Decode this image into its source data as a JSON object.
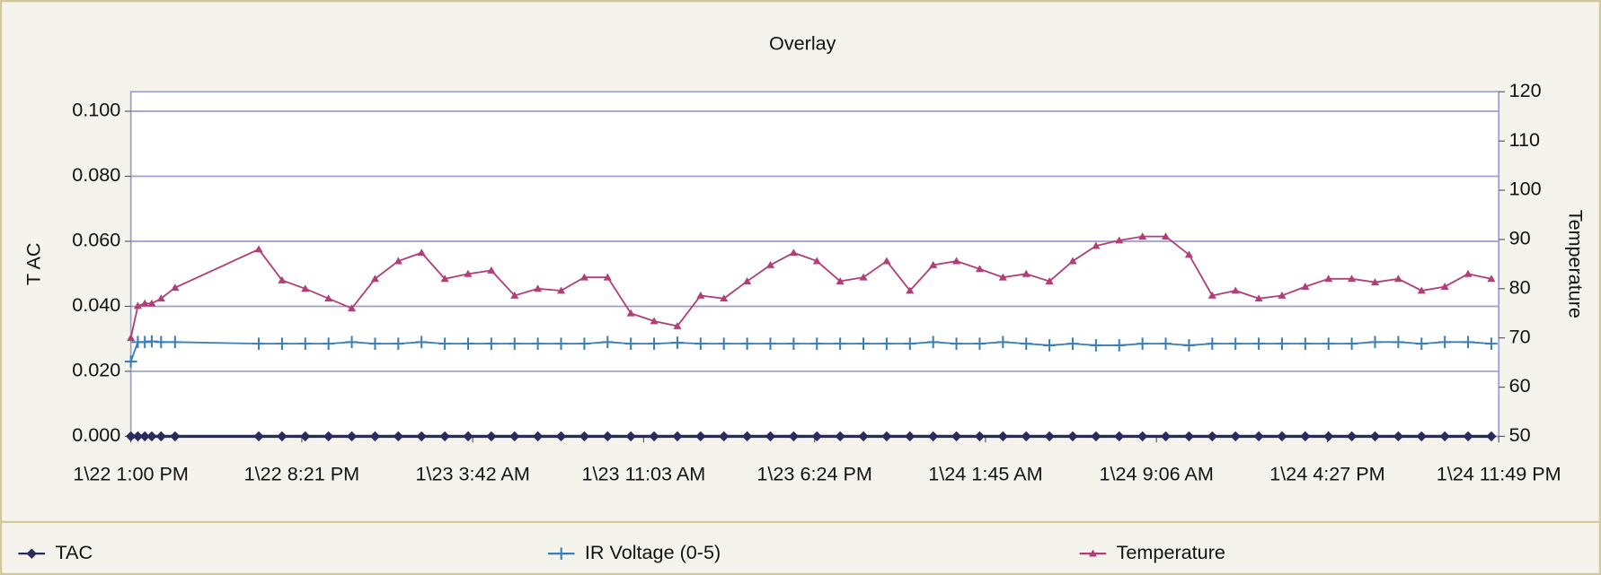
{
  "chart_data": {
    "type": "line",
    "title": "Overlay",
    "ylabel": "T AC",
    "y2label": "Temperature",
    "x": [
      0,
      0.3,
      0.6,
      0.9,
      1.3,
      1.9,
      5.5,
      6.5,
      7.5,
      8.5,
      9.5,
      10.5,
      11.5,
      12.5,
      13.5,
      14.5,
      15.5,
      16.5,
      17.5,
      18.5,
      19.5,
      20.5,
      21.5,
      22.5,
      23.5,
      24.5,
      25.5,
      26.5,
      27.5,
      28.5,
      29.5,
      30.5,
      31.5,
      32.5,
      33.5,
      34.5,
      35.5,
      36.5,
      37.5,
      38.5,
      39.5,
      40.5,
      41.5,
      42.5,
      43.5,
      44.5,
      45.5,
      46.5,
      47.5,
      48.5,
      49.5,
      50.5,
      51.5,
      52.5,
      53.5,
      54.5,
      55.5,
      56.5,
      57.5,
      58.5
    ],
    "xlim": [
      0,
      58.82
    ],
    "xticks": [
      {
        "value": 0,
        "label": "1\\22 1:00 PM"
      },
      {
        "value": 7.35,
        "label": "1\\22 8:21 PM"
      },
      {
        "value": 14.7,
        "label": "1\\23 3:42 AM"
      },
      {
        "value": 22.05,
        "label": "1\\23 11:03 AM"
      },
      {
        "value": 29.4,
        "label": "1\\23 6:24 PM"
      },
      {
        "value": 36.75,
        "label": "1\\24 1:45 AM"
      },
      {
        "value": 44.1,
        "label": "1\\24 9:06 AM"
      },
      {
        "value": 51.45,
        "label": "1\\24 4:27 PM"
      },
      {
        "value": 58.82,
        "label": "1\\24 11:49 PM"
      }
    ],
    "ylim": [
      0,
      0.106
    ],
    "yticks": [
      {
        "value": 0,
        "label": "0.000"
      },
      {
        "value": 0.02,
        "label": "0.020"
      },
      {
        "value": 0.04,
        "label": "0.040"
      },
      {
        "value": 0.06,
        "label": "0.060"
      },
      {
        "value": 0.08,
        "label": "0.080"
      },
      {
        "value": 0.1,
        "label": "0.100"
      }
    ],
    "y2lim": [
      50,
      120
    ],
    "y2ticks": [
      50,
      60,
      70,
      80,
      90,
      100,
      110,
      120
    ],
    "grid": true,
    "legend": "bottom",
    "series": [
      {
        "name": "TAC",
        "color": "#2a2a5c",
        "marker": "diamond",
        "values": [
          0,
          0,
          0,
          0,
          0,
          0,
          0,
          0,
          0,
          0,
          0,
          0,
          0,
          0,
          0,
          0,
          0,
          0,
          0,
          0,
          0,
          0,
          0,
          0,
          0,
          0,
          0,
          0,
          0,
          0,
          0,
          0,
          0,
          0,
          0,
          0,
          0,
          0,
          0,
          0,
          0,
          0,
          0,
          0,
          0,
          0,
          0,
          0,
          0,
          0,
          0,
          0,
          0,
          0,
          0,
          0,
          0,
          0,
          0,
          0
        ]
      },
      {
        "name": "IR Voltage (0-5)",
        "color": "#3a7fb8",
        "marker": "plus",
        "values": [
          0.023,
          0.029,
          0.029,
          0.0292,
          0.029,
          0.029,
          0.0285,
          0.0285,
          0.0285,
          0.0285,
          0.029,
          0.0285,
          0.0285,
          0.029,
          0.0285,
          0.0285,
          0.0285,
          0.0285,
          0.0285,
          0.0285,
          0.0285,
          0.029,
          0.0285,
          0.0285,
          0.0288,
          0.0285,
          0.0285,
          0.0285,
          0.0285,
          0.0285,
          0.0285,
          0.0285,
          0.0285,
          0.0285,
          0.0285,
          0.029,
          0.0285,
          0.0285,
          0.029,
          0.0285,
          0.028,
          0.0285,
          0.028,
          0.028,
          0.0285,
          0.0285,
          0.028,
          0.0285,
          0.0285,
          0.0285,
          0.0285,
          0.0285,
          0.0285,
          0.0285,
          0.029,
          0.029,
          0.0285,
          0.029,
          0.029,
          0.0285
        ]
      },
      {
        "name": "Temperature",
        "color": "#b03f78",
        "marker": "triangle",
        "axis": "y2",
        "values": [
          70,
          76.5,
          77,
          77,
          78,
          80.2,
          88,
          81.7,
          80,
          78,
          76,
          82,
          85.6,
          87.3,
          82,
          83,
          83.7,
          78.6,
          80,
          79.6,
          82.3,
          82.3,
          75,
          73.4,
          72.4,
          78.6,
          78,
          81.5,
          84.8,
          87.3,
          85.6,
          81.5,
          82.3,
          85.6,
          79.6,
          84.8,
          85.6,
          84,
          82.3,
          83,
          81.5,
          85.6,
          88.7,
          89.8,
          90.6,
          90.6,
          86.9,
          78.6,
          79.6,
          78,
          78.6,
          80.4,
          82,
          82,
          81.3,
          82,
          79.6,
          80.4,
          83,
          82
        ]
      }
    ]
  }
}
